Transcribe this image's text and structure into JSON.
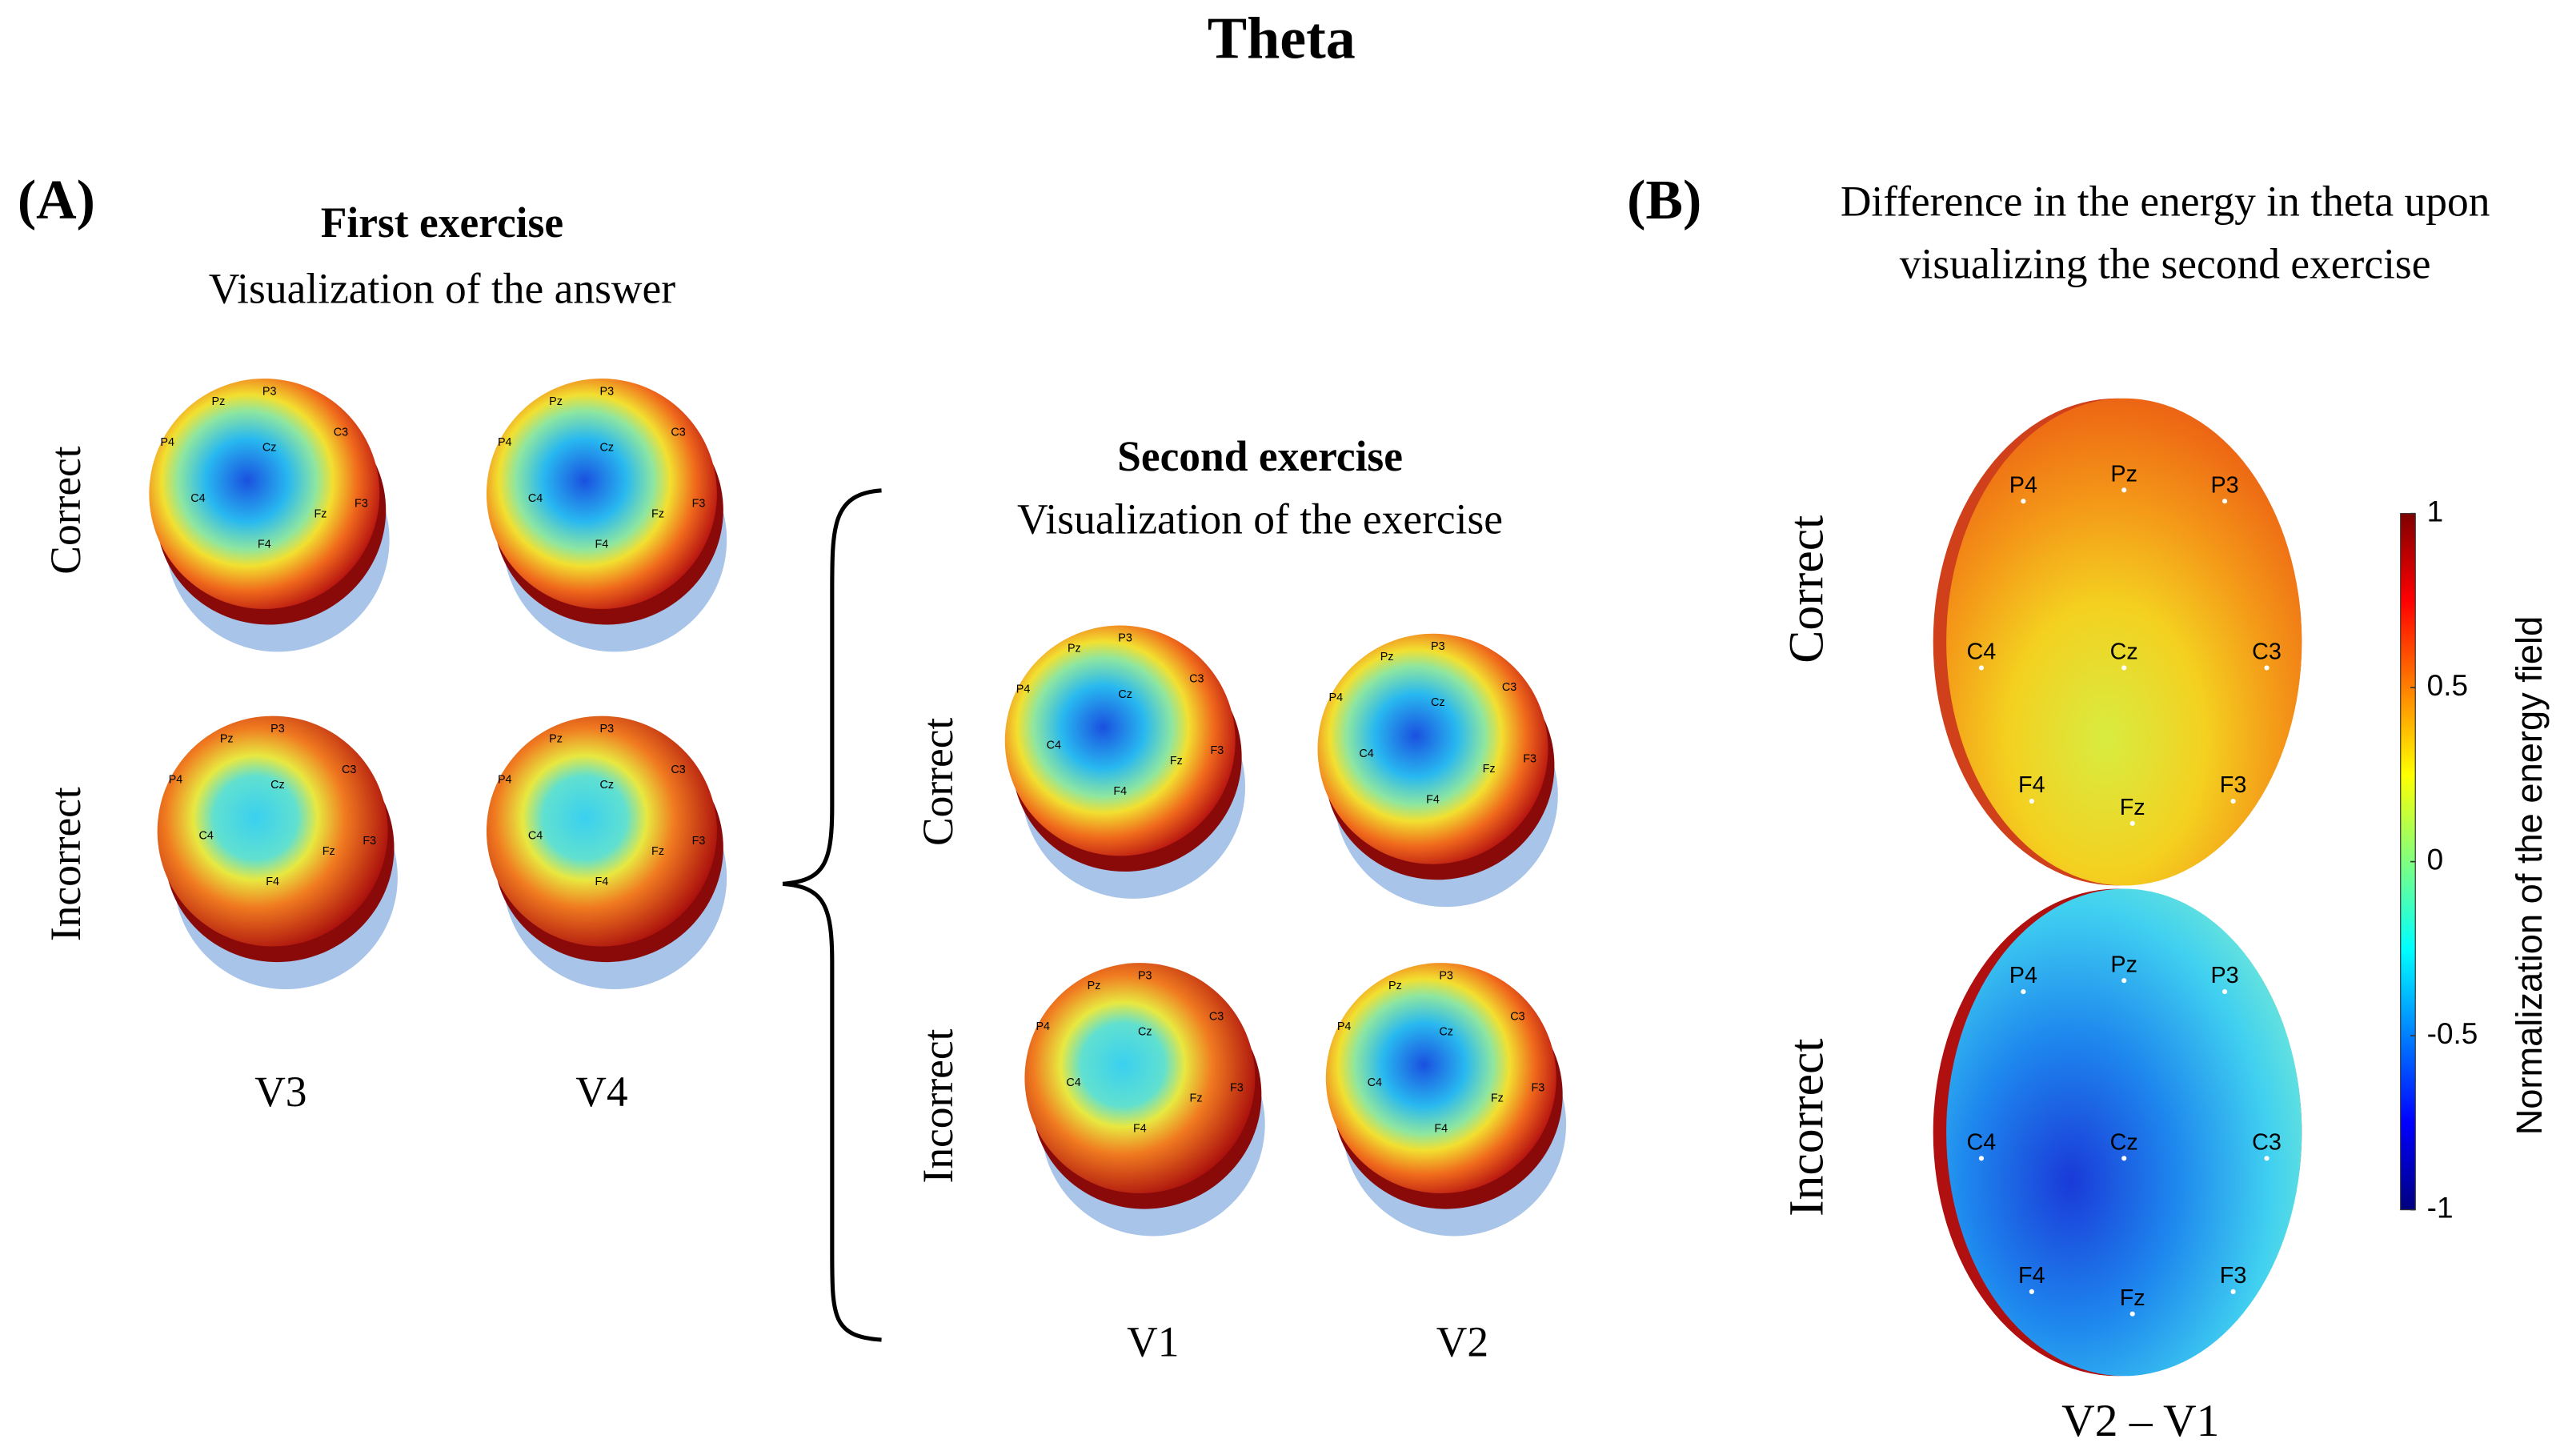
{
  "title": "Theta",
  "panel_a": {
    "label": "(A)",
    "first_exercise": {
      "title": "First exercise",
      "subtitle": "Visualization of the answer",
      "rows": [
        "Correct",
        "Incorrect"
      ],
      "columns": [
        "V3",
        "V4"
      ]
    },
    "second_exercise": {
      "title": "Second exercise",
      "subtitle": "Visualization of the exercise",
      "rows": [
        "Correct",
        "Incorrect"
      ],
      "columns": [
        "V1",
        "V2"
      ]
    }
  },
  "panel_b": {
    "label": "(B)",
    "title_lines": [
      "Difference in the energy in theta upon",
      "visualizing the second exercise"
    ],
    "rows": [
      "Correct",
      "Incorrect"
    ],
    "column": "V2 – V1",
    "colorbar": {
      "label": "Normalization of the energy field",
      "clim": [
        -1,
        1
      ],
      "ticks": [
        1,
        0.5,
        0,
        -0.5,
        -1
      ]
    }
  },
  "electrodes": [
    "P4",
    "Pz",
    "P3",
    "C4",
    "Cz",
    "C3",
    "F4",
    "Fz",
    "F3"
  ]
}
